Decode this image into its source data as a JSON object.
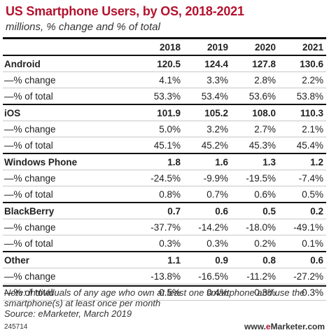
{
  "chart_data": {
    "type": "table",
    "title": "US Smartphone Users, by OS, 2018-2021",
    "subtitle": "millions, % change and % of total",
    "columns": [
      "2018",
      "2019",
      "2020",
      "2021"
    ],
    "groups": [
      {
        "name": "Android",
        "values": [
          "120.5",
          "124.4",
          "127.8",
          "130.6"
        ],
        "rows": [
          {
            "label": "—% change",
            "values": [
              "4.1%",
              "3.3%",
              "2.8%",
              "2.2%"
            ]
          },
          {
            "label": "—% of total",
            "values": [
              "53.3%",
              "53.4%",
              "53.6%",
              "53.8%"
            ]
          }
        ]
      },
      {
        "name": "iOS",
        "values": [
          "101.9",
          "105.2",
          "108.0",
          "110.3"
        ],
        "rows": [
          {
            "label": "—% change",
            "values": [
              "5.0%",
              "3.2%",
              "2.7%",
              "2.1%"
            ]
          },
          {
            "label": "—% of total",
            "values": [
              "45.1%",
              "45.2%",
              "45.3%",
              "45.4%"
            ]
          }
        ]
      },
      {
        "name": "Windows Phone",
        "values": [
          "1.8",
          "1.6",
          "1.3",
          "1.2"
        ],
        "rows": [
          {
            "label": "—% change",
            "values": [
              "-24.5%",
              "-9.9%",
              "-19.5%",
              "-7.4%"
            ]
          },
          {
            "label": "—% of total",
            "values": [
              "0.8%",
              "0.7%",
              "0.6%",
              "0.5%"
            ]
          }
        ]
      },
      {
        "name": "BlackBerry",
        "values": [
          "0.7",
          "0.6",
          "0.5",
          "0.2"
        ],
        "rows": [
          {
            "label": "—% change",
            "values": [
              "-37.7%",
              "-14.2%",
              "-18.0%",
              "-49.1%"
            ]
          },
          {
            "label": "—% of total",
            "values": [
              "0.3%",
              "0.3%",
              "0.2%",
              "0.1%"
            ]
          }
        ]
      },
      {
        "name": "Other",
        "values": [
          "1.1",
          "0.9",
          "0.8",
          "0.6"
        ],
        "rows": [
          {
            "label": "—% change",
            "values": [
              "-13.8%",
              "-16.5%",
              "-11.2%",
              "-27.2%"
            ]
          },
          {
            "label": "—% of total",
            "values": [
              "0.5%",
              "0.4%",
              "0.3%",
              "0.3%"
            ]
          }
        ]
      }
    ],
    "note": "Note: individuals of any age who own at least one smartphone and use the smartphone(s) at least once per month",
    "source": "Source: eMarketer, March 2019",
    "chart_id": "245714",
    "brand": {
      "prefix": "www.",
      "mark": "e",
      "name": "Marketer",
      "suffix": ".com",
      "accent": "#b4122e"
    }
  }
}
